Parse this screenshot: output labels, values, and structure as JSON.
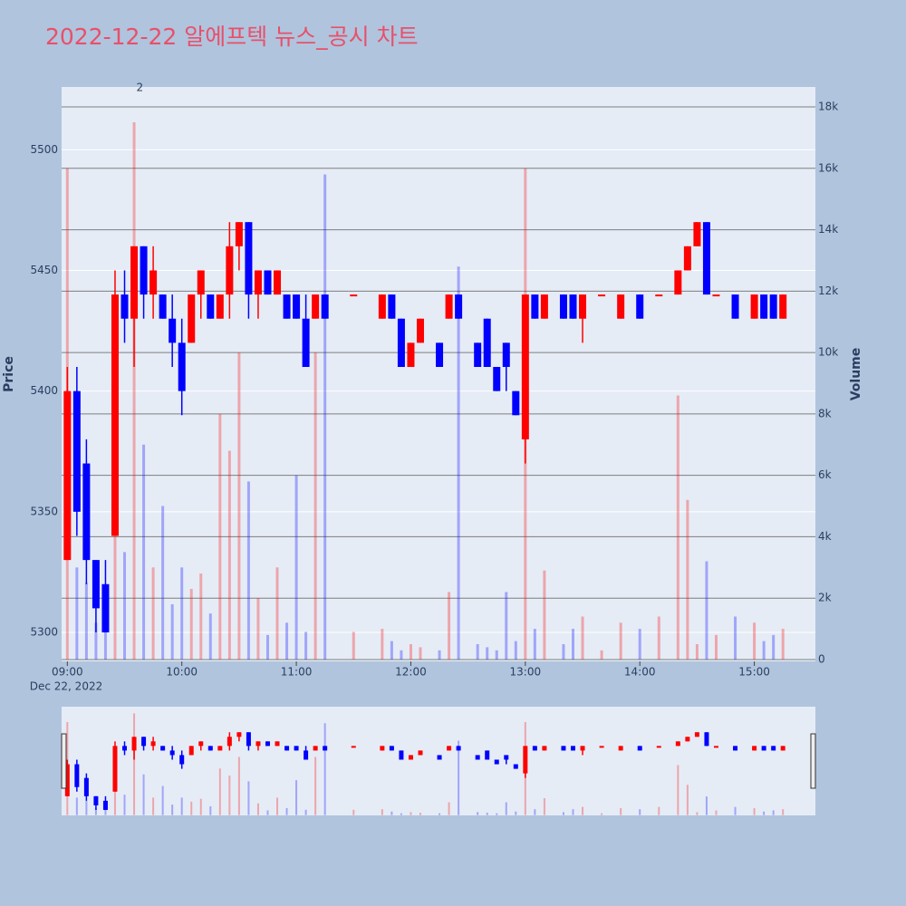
{
  "chart_data": {
    "type": "candlestick",
    "title": "2022-12-22 알에프텍 뉴스_공시 차트",
    "y_title": "Price",
    "y2_title": "Volume",
    "x_date_label": "Dec 22, 2022",
    "annotation": {
      "text": "2",
      "x": "09:38"
    },
    "increasing_color": "#ff0000",
    "decreasing_color": "#0000ff",
    "x": [
      "09:00",
      "09:05",
      "09:10",
      "09:15",
      "09:20",
      "09:25",
      "09:30",
      "09:35",
      "09:40",
      "09:45",
      "09:50",
      "09:55",
      "10:00",
      "10:05",
      "10:10",
      "10:15",
      "10:20",
      "10:25",
      "10:30",
      "10:35",
      "10:40",
      "10:45",
      "10:50",
      "10:55",
      "11:00",
      "11:05",
      "11:10",
      "11:15",
      "11:30",
      "11:45",
      "11:50",
      "11:55",
      "12:00",
      "12:05",
      "12:15",
      "12:20",
      "12:25",
      "12:35",
      "12:40",
      "12:45",
      "12:50",
      "12:55",
      "13:00",
      "13:05",
      "13:10",
      "13:20",
      "13:25",
      "13:30",
      "13:40",
      "13:50",
      "14:00",
      "14:10",
      "14:20",
      "14:25",
      "14:30",
      "14:35",
      "14:40",
      "14:50",
      "15:00",
      "15:05",
      "15:10",
      "15:15"
    ],
    "open": [
      5330,
      5400,
      5370,
      5330,
      5320,
      5340,
      5440,
      5430,
      5460,
      5440,
      5440,
      5430,
      5420,
      5420,
      5440,
      5440,
      5430,
      5440,
      5460,
      5470,
      5440,
      5450,
      5440,
      5440,
      5440,
      5430,
      5430,
      5440,
      5440,
      5430,
      5440,
      5430,
      5410,
      5420,
      5420,
      5430,
      5440,
      5420,
      5430,
      5410,
      5420,
      5400,
      5380,
      5440,
      5430,
      5440,
      5440,
      5430,
      5440,
      5430,
      5440,
      5440,
      5440,
      5450,
      5460,
      5470,
      5440,
      5440,
      5430,
      5440,
      5440,
      5430
    ],
    "high": [
      5410,
      5410,
      5380,
      5330,
      5330,
      5450,
      5450,
      5460,
      5460,
      5460,
      5440,
      5440,
      5430,
      5440,
      5450,
      5440,
      5440,
      5470,
      5470,
      5470,
      5450,
      5450,
      5450,
      5440,
      5440,
      5440,
      5440,
      5440,
      5440,
      5440,
      5440,
      5430,
      5420,
      5430,
      5420,
      5440,
      5440,
      5420,
      5430,
      5410,
      5420,
      5400,
      5440,
      5440,
      5440,
      5440,
      5440,
      5440,
      5440,
      5440,
      5440,
      5440,
      5450,
      5460,
      5470,
      5470,
      5440,
      5440,
      5440,
      5440,
      5440,
      5440
    ],
    "low": [
      5330,
      5340,
      5320,
      5300,
      5300,
      5340,
      5420,
      5410,
      5430,
      5430,
      5430,
      5410,
      5390,
      5420,
      5430,
      5430,
      5430,
      5430,
      5450,
      5430,
      5430,
      5440,
      5440,
      5430,
      5430,
      5410,
      5430,
      5430,
      5440,
      5430,
      5430,
      5410,
      5410,
      5420,
      5410,
      5430,
      5430,
      5410,
      5410,
      5400,
      5400,
      5390,
      5370,
      5430,
      5430,
      5430,
      5430,
      5420,
      5440,
      5430,
      5430,
      5440,
      5440,
      5450,
      5460,
      5440,
      5440,
      5430,
      5430,
      5430,
      5430,
      5430
    ],
    "close": [
      5400,
      5350,
      5330,
      5310,
      5300,
      5440,
      5430,
      5460,
      5440,
      5450,
      5430,
      5420,
      5400,
      5440,
      5450,
      5430,
      5440,
      5460,
      5470,
      5440,
      5450,
      5440,
      5450,
      5430,
      5430,
      5410,
      5440,
      5430,
      5440,
      5440,
      5430,
      5410,
      5420,
      5430,
      5410,
      5440,
      5430,
      5410,
      5410,
      5400,
      5410,
      5390,
      5440,
      5430,
      5440,
      5430,
      5430,
      5440,
      5440,
      5440,
      5430,
      5440,
      5450,
      5460,
      5470,
      5440,
      5440,
      5430,
      5440,
      5430,
      5430,
      5440
    ],
    "volume": {
      "name": "Volume",
      "axis": "y2",
      "values": [
        16000,
        3000,
        2500,
        1200,
        1500,
        5000,
        3500,
        17500,
        7000,
        3000,
        5000,
        1800,
        3000,
        2300,
        2800,
        1500,
        8000,
        6800,
        10000,
        5800,
        2000,
        800,
        3000,
        1200,
        6000,
        900,
        10000,
        15800,
        900,
        1000,
        600,
        300,
        500,
        400,
        300,
        2200,
        12800,
        500,
        400,
        300,
        2200,
        600,
        16000,
        1000,
        2900,
        500,
        1000,
        1400,
        300,
        1200,
        1000,
        1400,
        8600,
        5200,
        500,
        3200,
        800,
        1400,
        1200,
        600,
        800,
        1000
      ]
    },
    "xlim": [
      "08:57",
      "15:32"
    ],
    "xticks": [
      "09:00",
      "10:00",
      "11:00",
      "12:00",
      "13:00",
      "14:00",
      "15:00"
    ],
    "ylim": [
      5288,
      5526
    ],
    "yticks": [
      5300,
      5350,
      5400,
      5450,
      5500
    ],
    "y2lim": [
      -60,
      18650
    ],
    "y2ticks": [
      0,
      {
        "value": 2000,
        "label": "2k"
      },
      {
        "value": 4000,
        "label": "4k"
      },
      {
        "value": 6000,
        "label": "6k"
      },
      {
        "value": 8000,
        "label": "8k"
      },
      {
        "value": 10000,
        "label": "10k"
      },
      {
        "value": 12000,
        "label": "12k"
      },
      {
        "value": 14000,
        "label": "14k"
      },
      {
        "value": 16000,
        "label": "16k"
      },
      {
        "value": 18000,
        "label": "18k"
      }
    ],
    "grid": true,
    "rangeslider": true
  }
}
